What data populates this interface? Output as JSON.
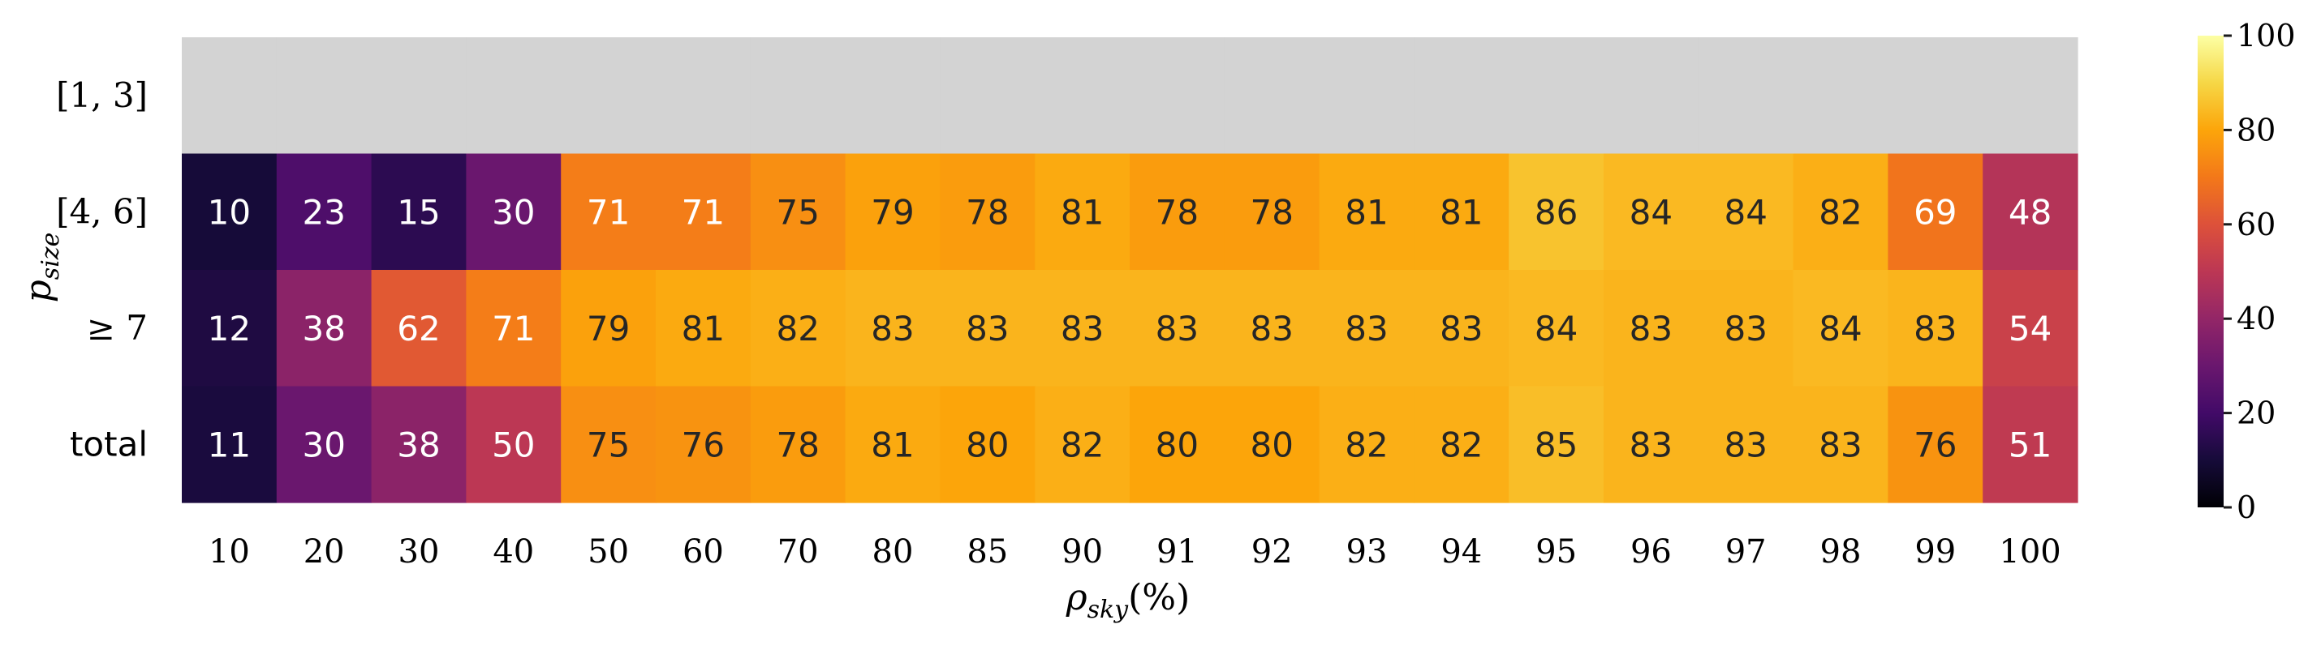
{
  "chart_data": {
    "type": "heatmap",
    "title": "",
    "xlabel": "ρ",
    "xlabel_sub": "sky",
    "xlabel_suffix": "(%)",
    "ylabel": "p",
    "ylabel_sub": "size",
    "x_categories": [
      "10",
      "20",
      "30",
      "40",
      "50",
      "60",
      "70",
      "80",
      "85",
      "90",
      "91",
      "92",
      "93",
      "94",
      "95",
      "96",
      "97",
      "98",
      "99",
      "100"
    ],
    "y_categories": [
      "[1, 3]",
      "[4, 6]",
      "≥ 7",
      "total"
    ],
    "values": [
      [
        null,
        null,
        null,
        null,
        null,
        null,
        null,
        null,
        null,
        null,
        null,
        null,
        null,
        null,
        null,
        null,
        null,
        null,
        null,
        null
      ],
      [
        10,
        23,
        15,
        30,
        71,
        71,
        75,
        79,
        78,
        81,
        78,
        78,
        81,
        81,
        86,
        84,
        84,
        82,
        69,
        48
      ],
      [
        12,
        38,
        62,
        71,
        79,
        81,
        82,
        83,
        83,
        83,
        83,
        83,
        83,
        83,
        84,
        83,
        83,
        84,
        83,
        54
      ],
      [
        11,
        30,
        38,
        50,
        75,
        76,
        78,
        81,
        80,
        82,
        80,
        80,
        82,
        82,
        85,
        83,
        83,
        83,
        76,
        51
      ]
    ],
    "missing_color": "#d3d3d3",
    "colormap": "inferno",
    "colorbar": {
      "range": [
        0,
        100
      ],
      "ticks": [
        "0",
        "20",
        "40",
        "60",
        "80",
        "100"
      ]
    }
  }
}
